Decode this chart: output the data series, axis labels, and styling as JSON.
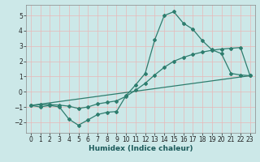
{
  "xlabel": "Humidex (Indice chaleur)",
  "bg_color": "#cce8e8",
  "line_color": "#2e7d6e",
  "grid_color_major": "#f0c0c0",
  "grid_color_minor": "#e8e8e8",
  "xlim": [
    -0.5,
    23.5
  ],
  "ylim": [
    -2.7,
    5.7
  ],
  "xticks": [
    0,
    1,
    2,
    3,
    4,
    5,
    6,
    7,
    8,
    9,
    10,
    11,
    12,
    13,
    14,
    15,
    16,
    17,
    18,
    19,
    20,
    21,
    22,
    23
  ],
  "yticks": [
    -2,
    -1,
    0,
    1,
    2,
    3,
    4,
    5
  ],
  "line1_x": [
    0,
    1,
    2,
    3,
    4,
    5,
    6,
    7,
    8,
    9,
    10,
    11,
    12,
    13,
    14,
    15,
    16,
    17,
    18,
    19,
    20,
    21,
    22,
    23
  ],
  "line1_y": [
    -0.9,
    -1.0,
    -0.9,
    -1.0,
    -1.8,
    -2.2,
    -1.85,
    -1.5,
    -1.35,
    -1.3,
    -0.25,
    0.45,
    1.2,
    3.4,
    5.0,
    5.25,
    4.5,
    4.1,
    3.35,
    2.75,
    2.5,
    1.2,
    1.1,
    1.05
  ],
  "line2_x": [
    0,
    23
  ],
  "line2_y": [
    -0.9,
    1.05
  ],
  "line3_x": [
    0,
    1,
    2,
    3,
    4,
    5,
    6,
    7,
    8,
    9,
    10,
    11,
    12,
    13,
    14,
    15,
    16,
    17,
    18,
    19,
    20,
    21,
    22,
    23
  ],
  "line3_y": [
    -0.9,
    -0.85,
    -0.85,
    -0.88,
    -0.95,
    -1.1,
    -1.0,
    -0.8,
    -0.7,
    -0.6,
    -0.3,
    0.1,
    0.55,
    1.1,
    1.6,
    2.0,
    2.25,
    2.45,
    2.6,
    2.72,
    2.8,
    2.85,
    2.9,
    1.05
  ],
  "xlabel_fontsize": 6.5,
  "tick_fontsize": 5.5
}
